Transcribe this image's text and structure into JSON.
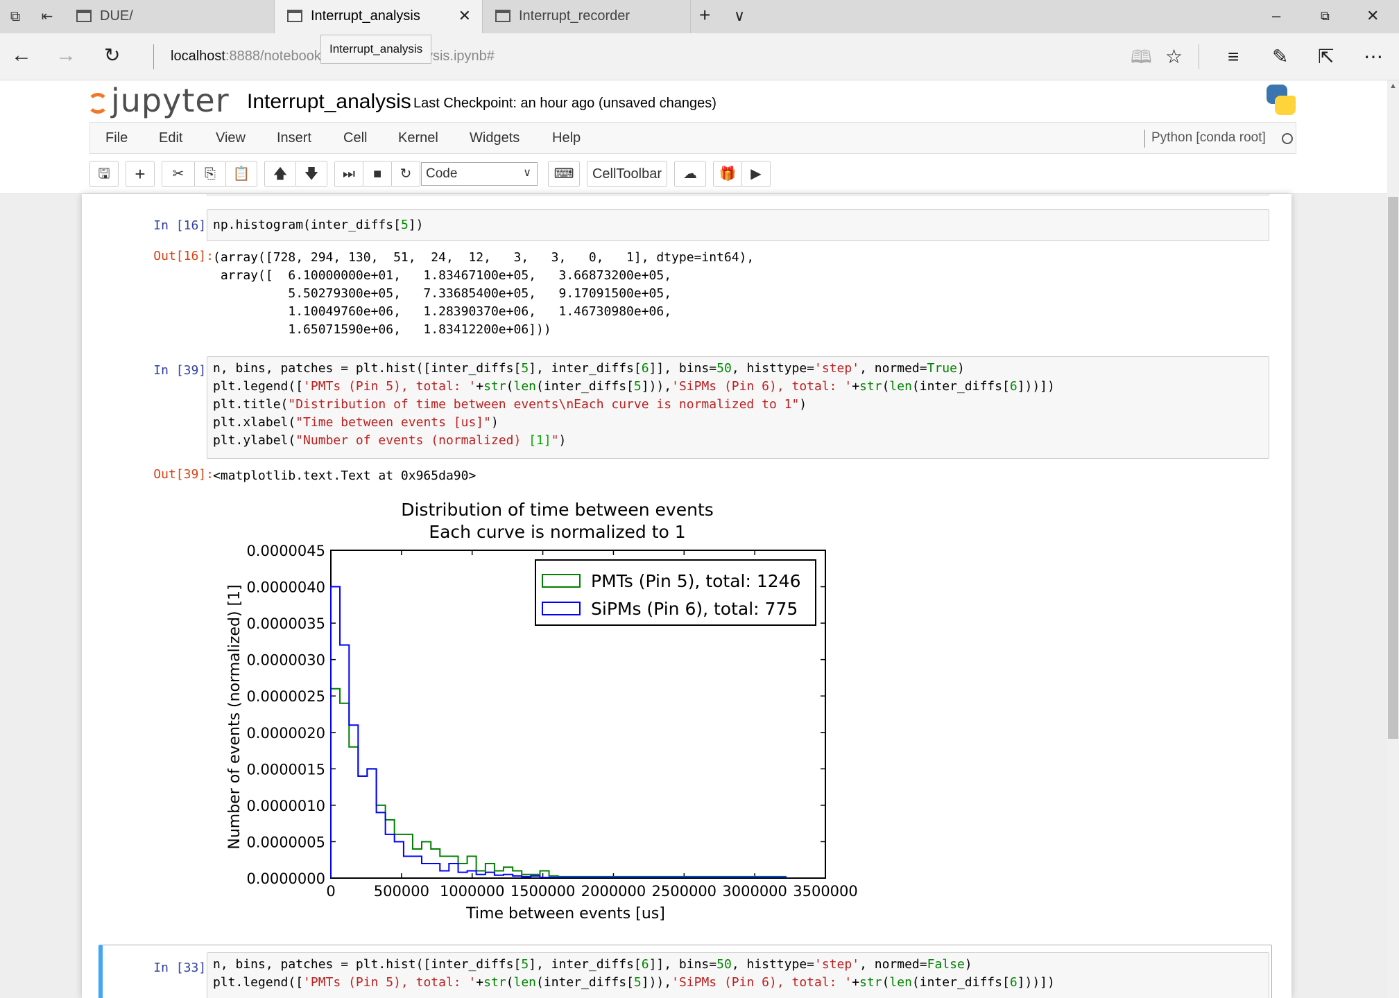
{
  "browser": {
    "tabs": [
      {
        "label": "DUE/",
        "active": false
      },
      {
        "label": "Interrupt_analysis",
        "active": true
      },
      {
        "label": "Interrupt_recorder",
        "active": false
      }
    ],
    "url_host": "localhost",
    "url_rest": ":8888/notebooks/",
    "url_tail": "alysis.ipynb#",
    "tooltip": "Interrupt_analysis"
  },
  "jupyter": {
    "logo_text": "jupyter",
    "notebook_title": "Interrupt_analysis",
    "checkpoint": "Last Checkpoint: an hour ago (unsaved changes)",
    "menu": [
      "File",
      "Edit",
      "View",
      "Insert",
      "Cell",
      "Kernel",
      "Widgets",
      "Help"
    ],
    "kernel": "Python [conda root]",
    "cell_type": "Code",
    "celltoolbar_label": "CellToolbar"
  },
  "cells": {
    "c16": {
      "in_prompt": "In [16]:",
      "code": "np.histogram(inter_diffs[5])",
      "out_prompt": "Out[16]:",
      "output": [
        "(array([728, 294, 130,  51,  24,  12,   3,   3,   0,   1], dtype=int64),",
        " array([  6.10000000e+01,   1.83467100e+05,   3.66873200e+05,",
        "          5.50279300e+05,   7.33685400e+05,   9.17091500e+05,",
        "          1.10049760e+06,   1.28390370e+06,   1.46730980e+06,",
        "          1.65071590e+06,   1.83412200e+06]))"
      ]
    },
    "c39": {
      "in_prompt": "In [39]:",
      "out_prompt": "Out[39]:",
      "output": "<matplotlib.text.Text at 0x965da90>"
    },
    "c33": {
      "in_prompt": "In [33]:"
    }
  },
  "chart_data": {
    "type": "line",
    "title": "Distribution of time between events\nEach curve is normalized to 1",
    "xlabel": "Time between events [us]",
    "ylabel": "Number of events (normalized) [1]",
    "xlim": [
      0,
      3500000
    ],
    "ylim": [
      0,
      4.5e-06
    ],
    "xticks": [
      "0",
      "500000",
      "1000000",
      "1500000",
      "2000000",
      "2500000",
      "3000000",
      "3500000"
    ],
    "yticks": [
      "0.0000000",
      "0.0000005",
      "0.0000010",
      "0.0000015",
      "0.0000020",
      "0.0000025",
      "0.0000030",
      "0.0000035",
      "0.0000040",
      "0.0000045"
    ],
    "legend_position": "top-right",
    "series": [
      {
        "name": "PMTs (Pin 5), total: 1246",
        "color": "#008000",
        "x": [
          0,
          64000,
          129000,
          193000,
          257000,
          322000,
          386000,
          450000,
          515000,
          579000,
          643000,
          708000,
          772000,
          836000,
          901000,
          965000,
          1029000,
          1094000,
          1158000,
          1222000,
          1287000,
          1351000,
          1415000,
          1480000,
          1544000,
          1608000,
          3220000
        ],
        "values": [
          2.6e-06,
          2.4e-06,
          1.8e-06,
          1.4e-06,
          1.5e-06,
          1e-06,
          8e-07,
          6e-07,
          6e-07,
          4e-07,
          5e-07,
          4e-07,
          3e-07,
          3e-07,
          2e-07,
          3e-07,
          1e-07,
          2e-07,
          1e-07,
          1.5e-07,
          1e-07,
          5e-08,
          5e-08,
          1e-07,
          3e-08,
          2e-08,
          0.0
        ]
      },
      {
        "name": "SiPMs (Pin 6), total: 775",
        "color": "#0000ff",
        "x": [
          0,
          64000,
          129000,
          193000,
          257000,
          322000,
          386000,
          450000,
          515000,
          579000,
          643000,
          708000,
          772000,
          836000,
          901000,
          965000,
          1029000,
          1094000,
          1158000,
          1222000,
          1287000,
          1351000,
          1415000,
          1480000,
          3220000
        ],
        "values": [
          4e-06,
          3.2e-06,
          2.1e-06,
          1.4e-06,
          1.5e-06,
          9e-07,
          6e-07,
          5e-07,
          3e-07,
          3e-07,
          2e-07,
          2e-07,
          1e-07,
          2e-07,
          8e-08,
          1e-07,
          5e-08,
          8e-08,
          4e-08,
          5e-08,
          3e-08,
          2e-08,
          3e-08,
          1e-08,
          0.0
        ]
      }
    ]
  }
}
